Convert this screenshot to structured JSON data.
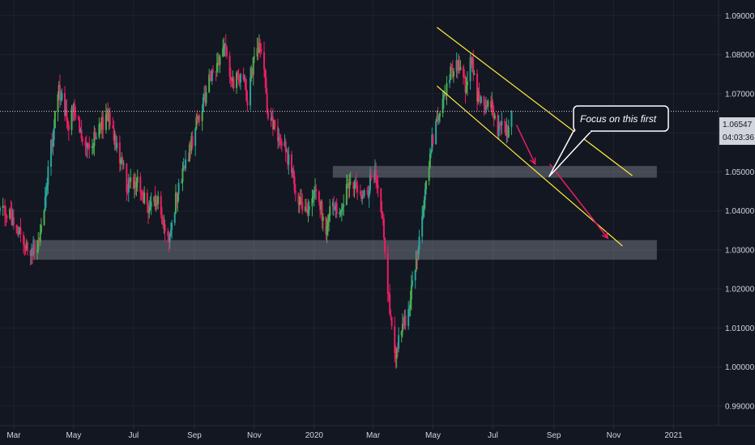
{
  "chart_data": {
    "type": "candlestick",
    "instrument_timeframe": "daily",
    "colors": {
      "background": "#131722",
      "bull": "#26a69a",
      "bull_bright": "#4caf50",
      "bear": "#e91e63",
      "grid": "#1e222d",
      "support_zone": "#b2b5be",
      "channel": "#ffeb3b",
      "arrow": "#e91e63",
      "current_line": "#d1d4dc"
    },
    "y_axis": {
      "range": [
        0.985,
        1.094
      ],
      "ticks": [
        "1.09000",
        "1.08000",
        "1.07000",
        "1.06000",
        "1.05000",
        "1.04000",
        "1.03000",
        "1.02000",
        "1.01000",
        "1.00000",
        "0.99000"
      ]
    },
    "x_axis": {
      "start": "2019-02-15",
      "end": "2021-02-15",
      "ticks": [
        {
          "label": "Mar",
          "date": "2019-03-01"
        },
        {
          "label": "May",
          "date": "2019-05-01"
        },
        {
          "label": "Jul",
          "date": "2019-07-01"
        },
        {
          "label": "Sep",
          "date": "2019-09-01"
        },
        {
          "label": "Nov",
          "date": "2019-11-01"
        },
        {
          "label": "2020",
          "date": "2020-01-01"
        },
        {
          "label": "Mar",
          "date": "2020-03-01"
        },
        {
          "label": "May",
          "date": "2020-05-01"
        },
        {
          "label": "Jul",
          "date": "2020-07-01"
        },
        {
          "label": "Sep",
          "date": "2020-09-01"
        },
        {
          "label": "Nov",
          "date": "2020-11-01"
        },
        {
          "label": "2021",
          "date": "2021-01-01"
        }
      ]
    },
    "price_path": [
      [
        "2019-02-15",
        1.04
      ],
      [
        "2019-03-01",
        1.038
      ],
      [
        "2019-03-15",
        1.03
      ],
      [
        "2019-03-25",
        1.029
      ],
      [
        "2019-04-01",
        1.042
      ],
      [
        "2019-04-10",
        1.06
      ],
      [
        "2019-04-15",
        1.072
      ],
      [
        "2019-04-25",
        1.062
      ],
      [
        "2019-05-01",
        1.066
      ],
      [
        "2019-05-15",
        1.056
      ],
      [
        "2019-05-25",
        1.06
      ],
      [
        "2019-06-05",
        1.064
      ],
      [
        "2019-06-15",
        1.056
      ],
      [
        "2019-06-25",
        1.046
      ],
      [
        "2019-07-05",
        1.048
      ],
      [
        "2019-07-15",
        1.04
      ],
      [
        "2019-07-25",
        1.043
      ],
      [
        "2019-08-05",
        1.033
      ],
      [
        "2019-08-15",
        1.045
      ],
      [
        "2019-08-25",
        1.054
      ],
      [
        "2019-09-05",
        1.064
      ],
      [
        "2019-09-20",
        1.076
      ],
      [
        "2019-10-01",
        1.082
      ],
      [
        "2019-10-10",
        1.073
      ],
      [
        "2019-10-20",
        1.076
      ],
      [
        "2019-10-25",
        1.068
      ],
      [
        "2019-11-03",
        1.083
      ],
      [
        "2019-11-10",
        1.078
      ],
      [
        "2019-11-15",
        1.064
      ],
      [
        "2019-11-25",
        1.06
      ],
      [
        "2019-12-05",
        1.054
      ],
      [
        "2019-12-15",
        1.044
      ],
      [
        "2019-12-25",
        1.04
      ],
      [
        "2020-01-05",
        1.045
      ],
      [
        "2020-01-12",
        1.034
      ],
      [
        "2020-01-20",
        1.042
      ],
      [
        "2020-01-28",
        1.038
      ],
      [
        "2020-02-05",
        1.047
      ],
      [
        "2020-02-15",
        1.045
      ],
      [
        "2020-02-22",
        1.043
      ],
      [
        "2020-03-03",
        1.051
      ],
      [
        "2020-03-10",
        1.04
      ],
      [
        "2020-03-15",
        1.022
      ],
      [
        "2020-03-23",
        1.003
      ],
      [
        "2020-04-01",
        1.01
      ],
      [
        "2020-04-10",
        1.02
      ],
      [
        "2020-04-20",
        1.04
      ],
      [
        "2020-04-28",
        1.055
      ],
      [
        "2020-05-05",
        1.063
      ],
      [
        "2020-05-12",
        1.07
      ],
      [
        "2020-05-20",
        1.076
      ],
      [
        "2020-05-28",
        1.078
      ],
      [
        "2020-06-03",
        1.072
      ],
      [
        "2020-06-08",
        1.08
      ],
      [
        "2020-06-15",
        1.07
      ],
      [
        "2020-06-22",
        1.066
      ],
      [
        "2020-06-30",
        1.068
      ],
      [
        "2020-07-05",
        1.06
      ],
      [
        "2020-07-10",
        1.064
      ],
      [
        "2020-07-15",
        1.06
      ],
      [
        "2020-07-20",
        1.06547
      ]
    ],
    "current_price": "1.06547",
    "countdown": "04:03:36",
    "annotations": {
      "callout_text": "Focus on this first",
      "support_zones": [
        {
          "from": "2020-01-20",
          "to": "2020-12-15",
          "low": 1.0485,
          "high": 1.0515
        },
        {
          "from": "2019-03-20",
          "to": "2020-12-15",
          "low": 1.0275,
          "high": 1.0325
        }
      ],
      "channel_lines": [
        {
          "from": [
            "2020-05-05",
            1.087
          ],
          "to": [
            "2020-11-20",
            1.049
          ]
        },
        {
          "from": [
            "2020-05-05",
            1.072
          ],
          "to": [
            "2020-11-10",
            1.031
          ]
        }
      ],
      "arrows": [
        {
          "from": [
            "2020-07-25",
            1.062
          ],
          "to": [
            "2020-08-13",
            1.052
          ]
        },
        {
          "from": [
            "2020-08-28",
            1.052
          ],
          "to": [
            "2020-10-26",
            1.033
          ]
        }
      ]
    }
  }
}
